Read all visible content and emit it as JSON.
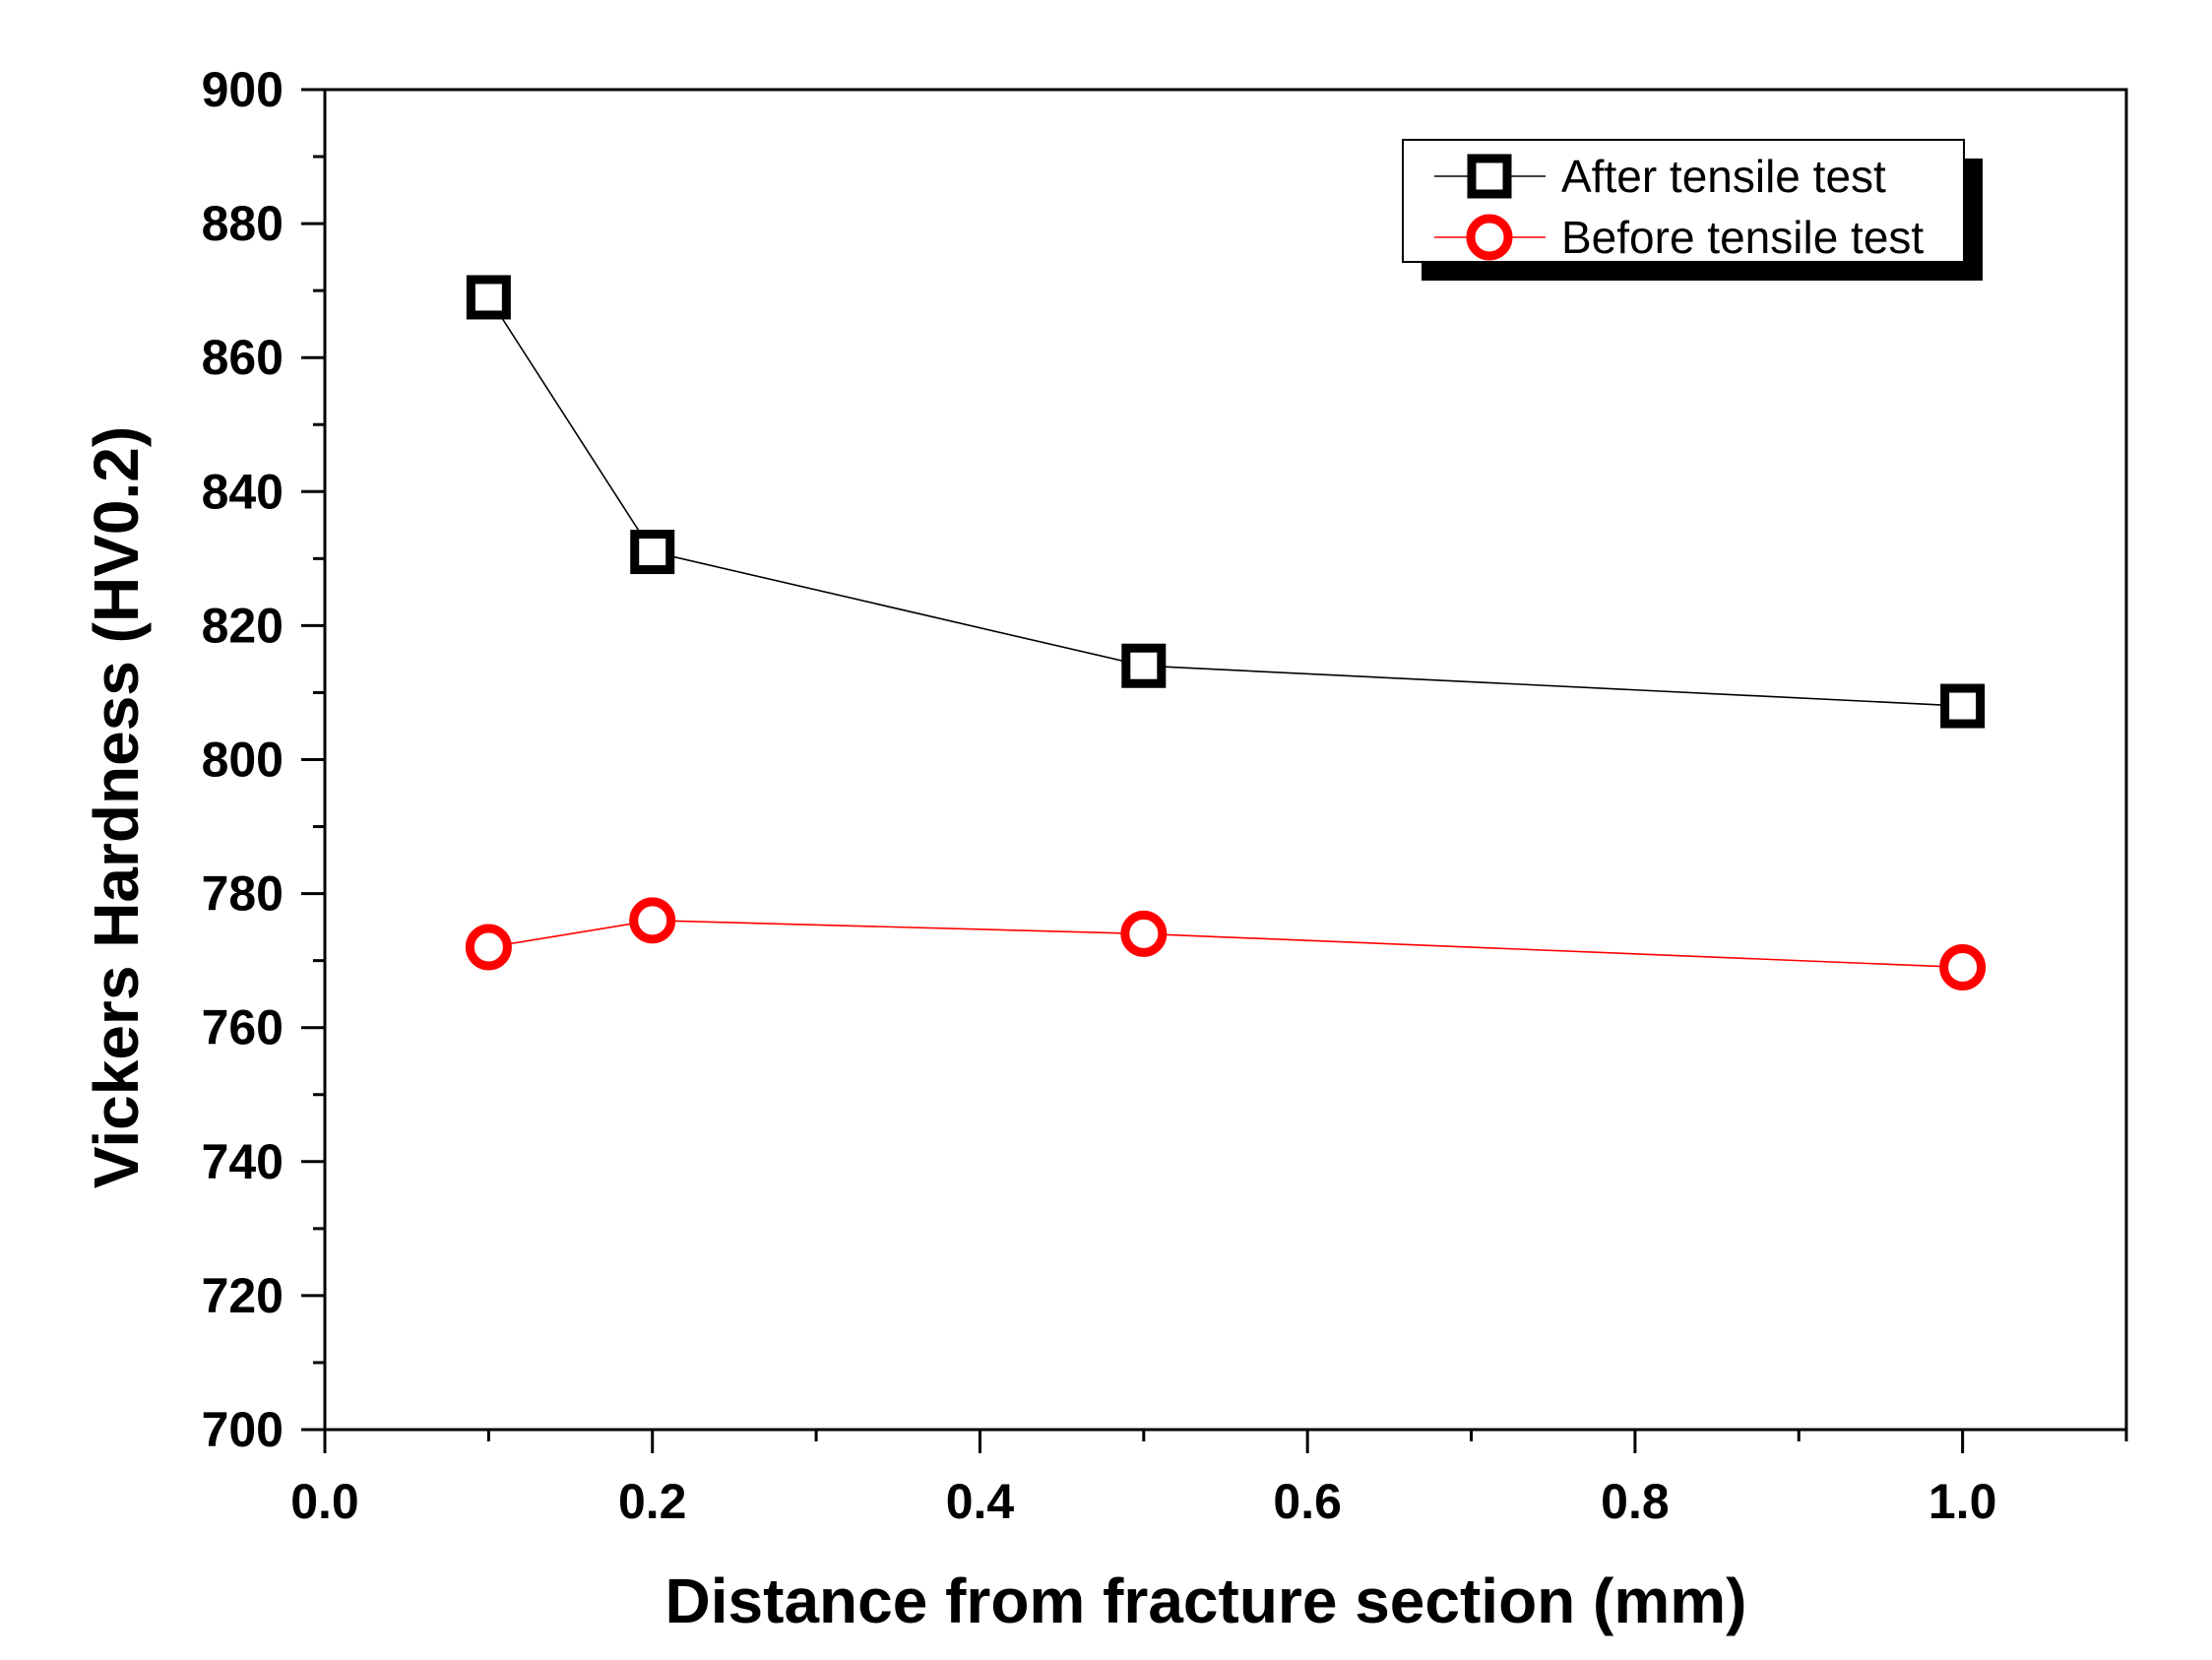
{
  "chart_data": {
    "type": "line",
    "title": "",
    "xlabel": "Distance from fracture section (mm)",
    "ylabel": "Vickers Hardness (HV0.2)",
    "xlim": [
      0.0,
      1.1
    ],
    "ylim": [
      700,
      900
    ],
    "x_ticks": [
      0.0,
      0.2,
      0.4,
      0.6,
      0.8,
      1.0
    ],
    "x_tick_labels": [
      "0.0",
      "0.2",
      "0.4",
      "0.6",
      "0.8",
      "1.0"
    ],
    "x_minor_ticks": [
      0.1,
      0.3,
      0.5,
      0.7,
      0.9,
      1.1
    ],
    "y_ticks": [
      700,
      720,
      740,
      760,
      780,
      800,
      820,
      840,
      860,
      880,
      900
    ],
    "y_tick_labels": [
      "700",
      "720",
      "740",
      "760",
      "780",
      "800",
      "820",
      "840",
      "860",
      "880",
      "900"
    ],
    "grid": false,
    "legend_position": "top-right",
    "series": [
      {
        "name": "After tensile test",
        "color": "#000000",
        "marker": "square",
        "x": [
          0.1,
          0.2,
          0.5,
          1.0
        ],
        "values": [
          869,
          831,
          814,
          808
        ]
      },
      {
        "name": "Before tensile test",
        "color": "#ff0000",
        "marker": "circle",
        "x": [
          0.1,
          0.2,
          0.5,
          1.0
        ],
        "values": [
          772,
          776,
          774,
          769
        ]
      }
    ]
  }
}
